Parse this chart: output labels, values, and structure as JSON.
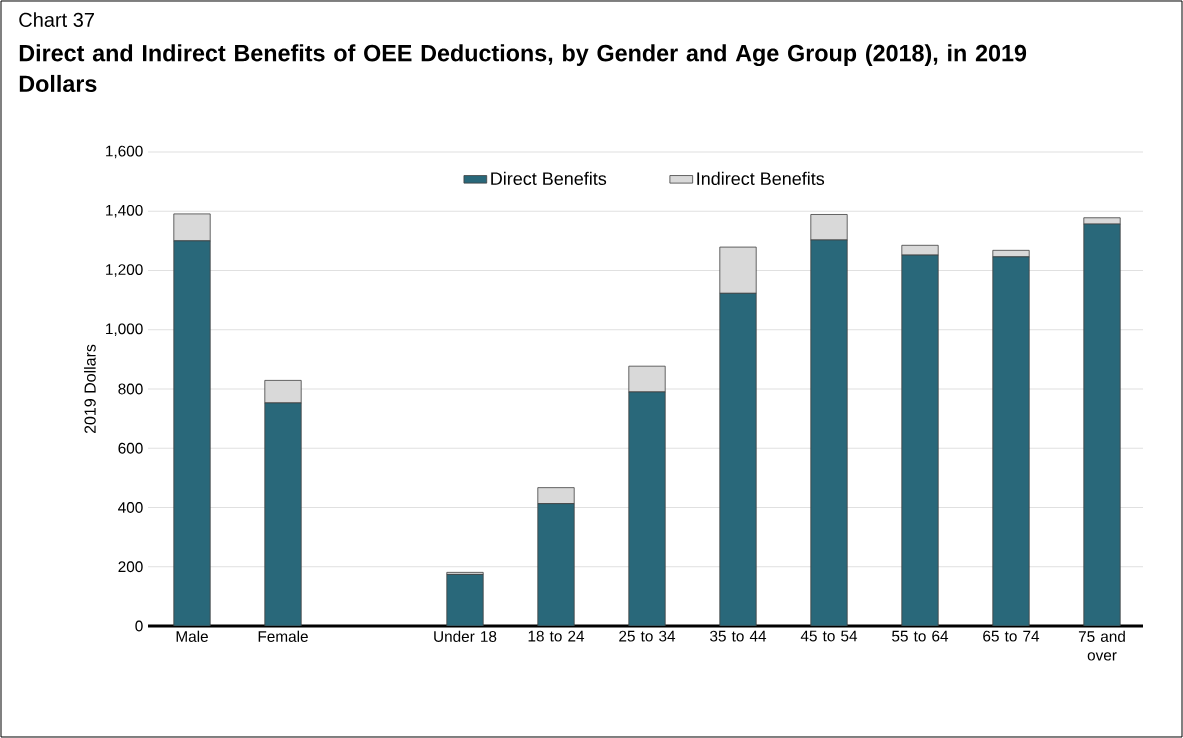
{
  "chart_data": {
    "type": "bar",
    "title": "Direct and Indirect Benefits of OEE Deductions, by Gender and Age Group (2018), in 2019 Dollars",
    "annotations": [
      "Chart 37"
    ],
    "ylabel": "2019 Dollars",
    "categories": [
      "Male",
      "Female",
      null,
      "Under 18",
      "18 to 24",
      "25 to 34",
      "35 to 44",
      "45 to 54",
      "55 to 64",
      "65 to 74",
      "75 and over"
    ],
    "series": [
      {
        "name": "Direct Benefits",
        "color": "#29687a",
        "values": [
          1300,
          753,
          null,
          174,
          413,
          790,
          1123,
          1303,
          1252,
          1246,
          1357
        ]
      },
      {
        "name": "Indirect Benefits",
        "color": "#d9d9d9",
        "values": [
          91,
          76,
          null,
          7,
          54,
          87,
          156,
          86,
          33,
          22,
          21
        ]
      }
    ],
    "stacked": true,
    "ylim": [
      0,
      1600
    ],
    "yticks": [
      0,
      200,
      400,
      600,
      800,
      {
        "value": 1000,
        "label": "1,000"
      },
      {
        "value": 1200,
        "label": "1,200"
      },
      {
        "value": 1400,
        "label": "1,400"
      },
      {
        "value": 1600,
        "label": "1,600"
      }
    ],
    "grid": "y",
    "legend": "top"
  }
}
